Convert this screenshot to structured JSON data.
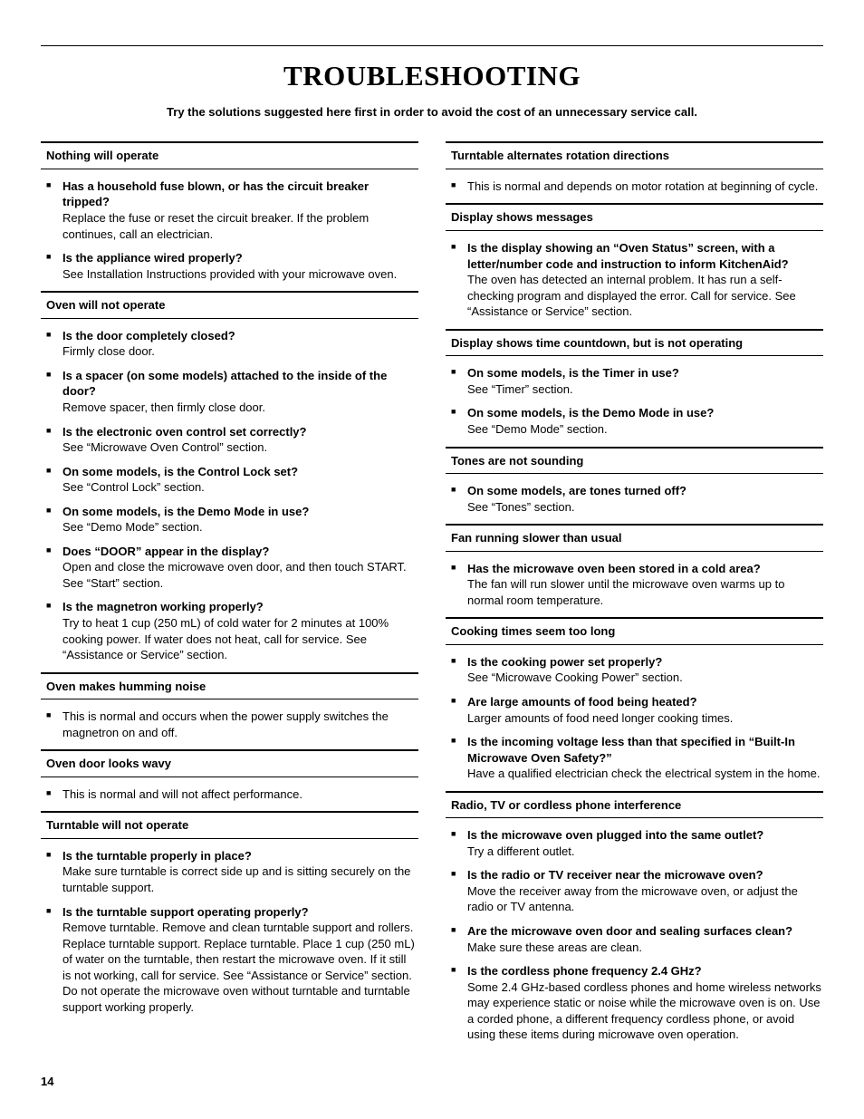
{
  "page": {
    "title": "TROUBLESHOOTING",
    "intro": "Try the solutions suggested here first in order to avoid the cost of an unnecessary service call.",
    "page_number": "14"
  },
  "left_sections": [
    {
      "heading": "Nothing will operate",
      "items": [
        {
          "q": "Has a household fuse blown, or has the circuit breaker tripped?",
          "a": "Replace the fuse or reset the circuit breaker. If the problem continues, call an electrician."
        },
        {
          "q": "Is the appliance wired properly?",
          "a": "See Installation Instructions provided with your microwave oven."
        }
      ]
    },
    {
      "heading": "Oven will not operate",
      "items": [
        {
          "q": "Is the door completely closed?",
          "a": "Firmly close door."
        },
        {
          "q": "Is a spacer (on some models) attached to the inside of the door?",
          "a": "Remove spacer, then firmly close door."
        },
        {
          "q": "Is the electronic oven control set correctly?",
          "a": "See “Microwave Oven Control” section."
        },
        {
          "q": "On some models, is the Control Lock set?",
          "a": "See “Control Lock” section."
        },
        {
          "q": "On some models, is the Demo Mode in use?",
          "a": "See “Demo Mode” section."
        },
        {
          "q": "Does “DOOR” appear in the display?",
          "a": "Open and close the microwave oven door, and then touch START. See “Start” section."
        },
        {
          "q": "Is the magnetron working properly?",
          "a": "Try to heat 1 cup (250 mL) of cold water for 2 minutes at 100% cooking power. If water does not heat, call for service. See “Assistance or Service” section."
        }
      ]
    },
    {
      "heading": "Oven makes humming noise",
      "items": [
        {
          "q": "",
          "a": "This is normal and occurs when the power supply switches the magnetron on and off."
        }
      ]
    },
    {
      "heading": "Oven door looks wavy",
      "items": [
        {
          "q": "",
          "a": "This is normal and will not affect performance."
        }
      ]
    },
    {
      "heading": "Turntable will not operate",
      "items": [
        {
          "q": "Is the turntable properly in place?",
          "a": "Make sure turntable is correct side up and is sitting securely on the turntable support."
        },
        {
          "q": "Is the turntable support operating properly?",
          "a": "Remove turntable. Remove and clean turntable support and rollers. Replace turntable support. Replace turntable. Place 1 cup (250 mL) of water on the turntable, then restart the microwave oven. If it still is not working, call for service. See “Assistance or Service” section. Do not operate the microwave oven without turntable and turntable support working properly."
        }
      ]
    }
  ],
  "right_sections": [
    {
      "heading": "Turntable alternates rotation directions",
      "items": [
        {
          "q": "",
          "a": "This is normal and depends on motor rotation at beginning of cycle."
        }
      ]
    },
    {
      "heading": "Display shows messages",
      "items": [
        {
          "q": "Is the display showing an “Oven Status” screen, with a letter/number code and instruction to inform KitchenAid?",
          "a": "The oven has detected an internal problem. It has run a self-checking program and displayed the error. Call for service. See “Assistance or Service” section."
        }
      ]
    },
    {
      "heading": "Display shows time countdown, but is not operating",
      "items": [
        {
          "q": "On some models, is the Timer in use?",
          "a": "See “Timer” section."
        },
        {
          "q": "On some models, is the Demo Mode in use?",
          "a": "See “Demo Mode” section."
        }
      ]
    },
    {
      "heading": "Tones are not sounding",
      "items": [
        {
          "q": "On some models, are tones turned off?",
          "a": "See “Tones” section."
        }
      ]
    },
    {
      "heading": "Fan running slower than usual",
      "items": [
        {
          "q": "Has the microwave oven been stored in a cold area?",
          "a": "The fan will run slower until the microwave oven warms up to normal room temperature."
        }
      ]
    },
    {
      "heading": "Cooking times seem too long",
      "items": [
        {
          "q": "Is the cooking power set properly?",
          "a": "See “Microwave Cooking Power” section."
        },
        {
          "q": "Are large amounts of food being heated?",
          "a": "Larger amounts of food need longer cooking times."
        },
        {
          "q": "Is the incoming voltage less than that specified in “Built-In Microwave Oven Safety?”",
          "a": "Have a qualified electrician check the electrical system in the home."
        }
      ]
    },
    {
      "heading": "Radio, TV or cordless phone interference",
      "items": [
        {
          "q": "Is the microwave oven plugged into the same outlet?",
          "a": "Try a different outlet."
        },
        {
          "q": "Is the radio or TV receiver near the microwave oven?",
          "a": "Move the receiver away from the microwave oven, or adjust the radio or TV antenna."
        },
        {
          "q": "Are the microwave oven door and sealing surfaces clean?",
          "a": "Make sure these areas are clean."
        },
        {
          "q": "Is the cordless phone frequency 2.4 GHz?",
          "a": "Some 2.4 GHz-based cordless phones and home wireless networks may experience static or noise while the microwave oven is on. Use a corded phone, a different frequency cordless phone, or avoid using these items during microwave oven operation."
        }
      ]
    }
  ]
}
